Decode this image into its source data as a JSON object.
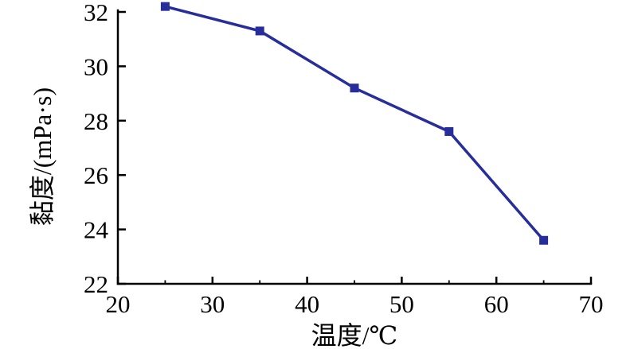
{
  "chart_data": {
    "type": "line",
    "title": "",
    "xlabel": "温度/℃",
    "ylabel": "黏度/(mPa·s)",
    "x": [
      25,
      35,
      45,
      55,
      65
    ],
    "series": [
      {
        "name": "黏度",
        "values": [
          32.2,
          31.3,
          29.2,
          27.6,
          23.6
        ]
      }
    ],
    "xlim": [
      20,
      70
    ],
    "ylim": [
      22,
      32
    ],
    "x_ticks": [
      20,
      30,
      40,
      50,
      60,
      70
    ],
    "x_tick_labels": [
      "20",
      "30",
      "40",
      "50",
      "60",
      "70"
    ],
    "x_minor_ticks": [
      25,
      35,
      45,
      55,
      65
    ],
    "y_ticks": [
      22,
      24,
      26,
      28,
      30,
      32
    ],
    "y_tick_labels": [
      "22",
      "24",
      "26",
      "28",
      "30",
      "32"
    ],
    "grid": false,
    "legend": "none",
    "marker": "square",
    "line_color": "#272e9c",
    "axis_color": "#000000",
    "background_color": "#ffffff"
  }
}
